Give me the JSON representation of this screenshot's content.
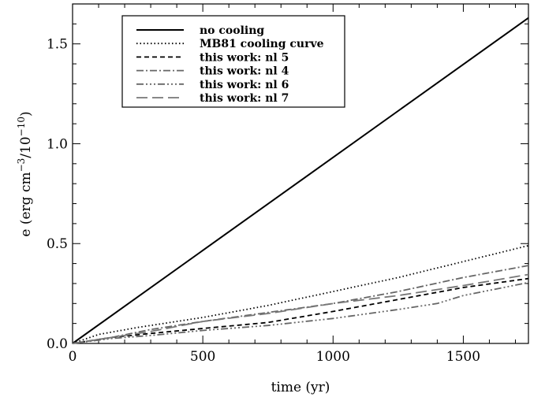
{
  "chart_data": {
    "type": "line",
    "xlabel": "time (yr)",
    "ylabel_parts": {
      "base": "e (erg cm",
      "exp1": "−3",
      "mid": "/10",
      "exp2": "−10",
      "end": ")"
    },
    "xlim": [
      0,
      1750
    ],
    "ylim": [
      0,
      1.7
    ],
    "xticks": [
      0,
      500,
      1000,
      1500
    ],
    "xtick_labels": [
      "0",
      "500",
      "1000",
      "1500"
    ],
    "yticks": [
      0,
      0.5,
      1.0,
      1.5
    ],
    "ytick_labels": [
      "0.0",
      "0.5",
      "1.0",
      "1.5"
    ],
    "legend_position": "top-left",
    "grid": false,
    "series": [
      {
        "name": "no cooling",
        "color": "#000000",
        "dash": "",
        "points": [
          [
            0,
            0.0
          ],
          [
            1750,
            1.63
          ]
        ]
      },
      {
        "name": "MB81 cooling curve",
        "color": "#000000",
        "dash": "1.5,3",
        "points": [
          [
            0,
            0.0
          ],
          [
            100,
            0.045
          ],
          [
            250,
            0.08
          ],
          [
            500,
            0.13
          ],
          [
            750,
            0.19
          ],
          [
            1000,
            0.26
          ],
          [
            1250,
            0.33
          ],
          [
            1500,
            0.41
          ],
          [
            1750,
            0.49
          ]
        ]
      },
      {
        "name": "this work: nl 5",
        "color": "#000000",
        "dash": "6,4",
        "points": [
          [
            0,
            0.0
          ],
          [
            150,
            0.03
          ],
          [
            300,
            0.05
          ],
          [
            500,
            0.075
          ],
          [
            750,
            0.105
          ],
          [
            1000,
            0.16
          ],
          [
            1250,
            0.22
          ],
          [
            1500,
            0.28
          ],
          [
            1750,
            0.325
          ]
        ]
      },
      {
        "name": "this work: nl 4",
        "color": "#666666",
        "dash": "9,3,2,3",
        "points": [
          [
            0,
            0.0
          ],
          [
            150,
            0.03
          ],
          [
            300,
            0.07
          ],
          [
            500,
            0.11
          ],
          [
            750,
            0.155
          ],
          [
            1000,
            0.2
          ],
          [
            1250,
            0.26
          ],
          [
            1500,
            0.33
          ],
          [
            1750,
            0.39
          ]
        ]
      },
      {
        "name": "this work: nl 6",
        "color": "#666666",
        "dash": "9,3,2,3,2,3,2,3",
        "points": [
          [
            0,
            0.0
          ],
          [
            150,
            0.025
          ],
          [
            300,
            0.04
          ],
          [
            500,
            0.065
          ],
          [
            750,
            0.09
          ],
          [
            1000,
            0.125
          ],
          [
            1250,
            0.17
          ],
          [
            1400,
            0.2
          ],
          [
            1500,
            0.24
          ],
          [
            1750,
            0.305
          ]
        ]
      },
      {
        "name": "this work: nl 7",
        "color": "#777777",
        "dash": "14,6",
        "points": [
          [
            0,
            0.0
          ],
          [
            150,
            0.03
          ],
          [
            300,
            0.06
          ],
          [
            500,
            0.11
          ],
          [
            750,
            0.15
          ],
          [
            1000,
            0.2
          ],
          [
            1250,
            0.24
          ],
          [
            1500,
            0.29
          ],
          [
            1750,
            0.345
          ]
        ]
      }
    ]
  }
}
